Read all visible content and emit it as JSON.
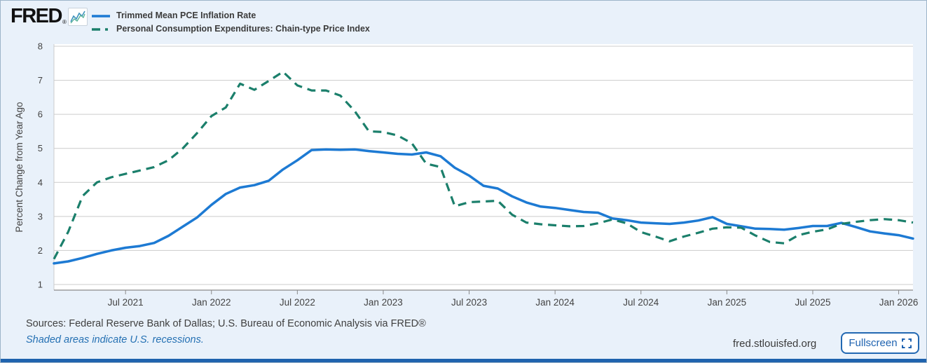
{
  "header": {
    "logo_text": "FRED",
    "registered_mark": "®",
    "legend": [
      {
        "label": "Trimmed Mean PCE Inflation Rate",
        "color": "#1d7ad3",
        "style": "solid"
      },
      {
        "label": "Personal Consumption Expenditures: Chain-type Price Index",
        "color": "#1b7f6b",
        "style": "dashed"
      }
    ]
  },
  "chart_data": {
    "type": "line",
    "title": "",
    "xlabel": "",
    "ylabel": "Percent Change from Year Ago",
    "ylim": [
      1,
      8
    ],
    "y_ticks": [
      1,
      2,
      3,
      4,
      5,
      6,
      7,
      8
    ],
    "grid": "horizontal",
    "legend_position": "top-left",
    "x_start": "2021-02",
    "x_end": "2026-02",
    "x_interval": "monthly",
    "x_ticks": [
      {
        "month_index": 5,
        "label": "Jul 2021"
      },
      {
        "month_index": 11,
        "label": "Jan 2022"
      },
      {
        "month_index": 17,
        "label": "Jul 2022"
      },
      {
        "month_index": 23,
        "label": "Jan 2023"
      },
      {
        "month_index": 29,
        "label": "Jul 2023"
      },
      {
        "month_index": 35,
        "label": "Jan 2024"
      },
      {
        "month_index": 41,
        "label": "Jul 2024"
      },
      {
        "month_index": 47,
        "label": "Jan 2025"
      },
      {
        "month_index": 53,
        "label": "Jul 2025"
      },
      {
        "month_index": 59,
        "label": "Jan 2026"
      }
    ],
    "series": [
      {
        "name": "Trimmed Mean PCE Inflation Rate",
        "color": "#1d7ad3",
        "dash": "solid",
        "line_width": 3.5,
        "values": [
          1.62,
          1.68,
          1.78,
          1.9,
          2.0,
          2.08,
          2.13,
          2.22,
          2.43,
          2.7,
          2.97,
          3.34,
          3.66,
          3.85,
          3.92,
          4.05,
          4.38,
          4.65,
          4.95,
          4.97,
          4.96,
          4.97,
          4.92,
          4.88,
          4.84,
          4.82,
          4.88,
          4.77,
          4.43,
          4.2,
          3.9,
          3.82,
          3.59,
          3.41,
          3.29,
          3.25,
          3.19,
          3.13,
          3.11,
          2.94,
          2.89,
          2.82,
          2.8,
          2.78,
          2.82,
          2.88,
          2.98,
          2.78,
          2.71,
          2.64,
          2.63,
          2.61,
          2.66,
          2.72,
          2.72,
          2.81,
          2.69,
          2.56,
          2.5,
          2.45,
          2.35
        ]
      },
      {
        "name": "Personal Consumption Expenditures: Chain-type Price Index",
        "color": "#1b7f6b",
        "dash": "dashed",
        "line_width": 3.2,
        "values": [
          1.75,
          2.55,
          3.6,
          4.0,
          4.15,
          4.25,
          4.35,
          4.45,
          4.65,
          5.0,
          5.45,
          5.95,
          6.2,
          6.9,
          6.72,
          6.98,
          7.25,
          6.85,
          6.7,
          6.7,
          6.55,
          6.1,
          5.5,
          5.48,
          5.38,
          5.15,
          4.55,
          4.45,
          3.3,
          3.42,
          3.44,
          3.46,
          3.05,
          2.82,
          2.77,
          2.74,
          2.71,
          2.72,
          2.8,
          2.91,
          2.8,
          2.54,
          2.41,
          2.27,
          2.41,
          2.52,
          2.64,
          2.68,
          2.67,
          2.44,
          2.25,
          2.21,
          2.45,
          2.55,
          2.62,
          2.78,
          2.84,
          2.89,
          2.92,
          2.89,
          2.82
        ]
      }
    ]
  },
  "footer": {
    "sources": "Sources: Federal Reserve Bank of Dallas; U.S. Bureau of Economic Analysis via FRED®",
    "recession_note": "Shaded areas indicate U.S. recessions.",
    "site": "fred.stlouisfed.org",
    "fullscreen_label": "Fullscreen"
  },
  "colors": {
    "page_background": "#e9f1fa",
    "plot_background": "#ffffff",
    "gridline": "#cccccc",
    "axis_line": "#8a8a8a",
    "tick_text": "#434343",
    "series_blue": "#1d7ad3",
    "series_green": "#1b7f6b",
    "accent_blue": "#2268b2",
    "bottom_bar": "#1f63ae"
  }
}
